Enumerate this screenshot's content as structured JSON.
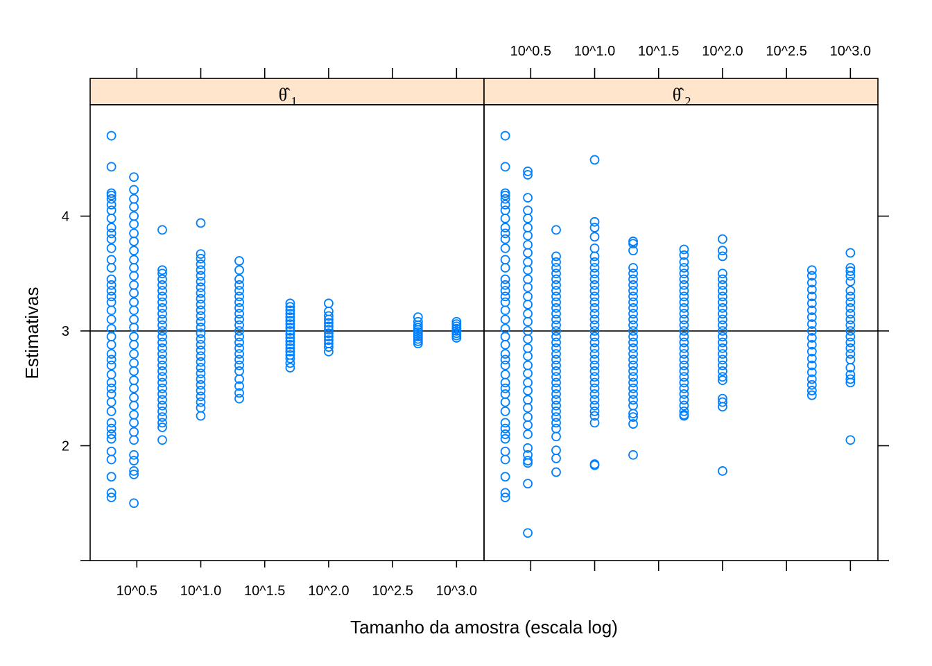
{
  "chart_data": {
    "type": "scatter",
    "xlabel": "Tamanho da amostra (escala log)",
    "ylabel": "Estimativas",
    "x_tick_labels": [
      "10^0.5",
      "10^1.0",
      "10^1.5",
      "10^2.0",
      "10^2.5",
      "10^3.0"
    ],
    "x_tick_exponents": [
      0.5,
      1.0,
      1.5,
      2.0,
      2.5,
      3.0
    ],
    "y_ticks": [
      2,
      3,
      4
    ],
    "ylim": [
      1.0,
      4.97
    ],
    "xlim_log10": [
      0.135,
      3.215
    ],
    "reference_line_y": 3,
    "point_color": "#0080ff",
    "strip_color": "#ffe5cc",
    "sample_sizes": [
      2,
      3,
      5,
      10,
      20,
      50,
      100,
      500,
      1000
    ],
    "panels": [
      {
        "name": "θ̂1",
        "strip_symbol": "θ̂",
        "strip_subscript": "1",
        "series": [
          {
            "n": 2,
            "values": [
              4.7,
              4.43,
              4.2,
              4.18,
              4.15,
              4.1,
              4.05,
              3.98,
              3.9,
              3.85,
              3.8,
              3.72,
              3.62,
              3.55,
              3.45,
              3.4,
              3.35,
              3.3,
              3.25,
              3.18,
              3.1,
              3.02,
              2.95,
              2.88,
              2.8,
              2.75,
              2.7,
              2.62,
              2.55,
              2.5,
              2.45,
              2.38,
              2.3,
              2.2,
              2.15,
              2.1,
              2.06,
              1.95,
              1.88,
              1.73,
              1.59,
              1.55
            ]
          },
          {
            "n": 3,
            "values": [
              4.34,
              4.23,
              4.15,
              4.08,
              4.0,
              3.93,
              3.85,
              3.78,
              3.7,
              3.62,
              3.55,
              3.48,
              3.4,
              3.33,
              3.25,
              3.18,
              3.1,
              3.03,
              2.95,
              2.88,
              2.8,
              2.72,
              2.65,
              2.57,
              2.5,
              2.42,
              2.35,
              2.27,
              2.2,
              2.12,
              2.05,
              1.92,
              1.87,
              1.78,
              1.75,
              1.5
            ]
          },
          {
            "n": 5,
            "values": [
              3.88,
              3.53,
              3.5,
              3.45,
              3.4,
              3.35,
              3.3,
              3.25,
              3.2,
              3.15,
              3.1,
              3.05,
              3.0,
              2.95,
              2.9,
              2.85,
              2.8,
              2.75,
              2.7,
              2.65,
              2.6,
              2.55,
              2.5,
              2.45,
              2.4,
              2.35,
              2.3,
              2.25,
              2.2,
              2.16,
              2.05
            ]
          },
          {
            "n": 10,
            "values": [
              3.94,
              3.67,
              3.63,
              3.58,
              3.53,
              3.48,
              3.43,
              3.38,
              3.33,
              3.28,
              3.23,
              3.18,
              3.13,
              3.08,
              3.03,
              2.98,
              2.93,
              2.88,
              2.83,
              2.78,
              2.73,
              2.68,
              2.63,
              2.58,
              2.53,
              2.48,
              2.43,
              2.38,
              2.33,
              2.26
            ]
          },
          {
            "n": 20,
            "values": [
              3.61,
              3.53,
              3.45,
              3.4,
              3.35,
              3.3,
              3.25,
              3.2,
              3.15,
              3.1,
              3.05,
              3.0,
              2.95,
              2.9,
              2.85,
              2.8,
              2.75,
              2.7,
              2.65,
              2.58,
              2.52,
              2.46,
              2.41
            ]
          },
          {
            "n": 50,
            "values": [
              3.24,
              3.21,
              3.18,
              3.15,
              3.12,
              3.09,
              3.06,
              3.03,
              3.0,
              2.97,
              2.94,
              2.91,
              2.88,
              2.85,
              2.82,
              2.79,
              2.76,
              2.72,
              2.68
            ]
          },
          {
            "n": 100,
            "values": [
              3.24,
              3.17,
              3.13,
              3.1,
              3.07,
              3.04,
              3.01,
              2.98,
              2.95,
              2.92,
              2.89,
              2.86,
              2.82
            ]
          },
          {
            "n": 500,
            "values": [
              3.12,
              3.08,
              3.05,
              3.03,
              3.01,
              2.99,
              2.97,
              2.95,
              2.93,
              2.91,
              2.89
            ]
          },
          {
            "n": 1000,
            "values": [
              3.08,
              3.06,
              3.04,
              3.02,
              3.0,
              2.98,
              2.96,
              2.94
            ]
          }
        ]
      },
      {
        "name": "θ̂2",
        "strip_symbol": "θ̂",
        "strip_subscript": "2",
        "series": [
          {
            "n": 2,
            "values": [
              4.7,
              4.43,
              4.2,
              4.18,
              4.15,
              4.1,
              4.05,
              3.98,
              3.9,
              3.85,
              3.8,
              3.72,
              3.62,
              3.55,
              3.45,
              3.4,
              3.35,
              3.3,
              3.25,
              3.18,
              3.1,
              3.02,
              2.95,
              2.88,
              2.8,
              2.75,
              2.7,
              2.62,
              2.55,
              2.5,
              2.45,
              2.38,
              2.3,
              2.2,
              2.15,
              2.1,
              2.06,
              1.95,
              1.88,
              1.73,
              1.59,
              1.55
            ]
          },
          {
            "n": 3,
            "values": [
              4.39,
              4.36,
              4.16,
              4.05,
              3.98,
              3.9,
              3.83,
              3.75,
              3.68,
              3.6,
              3.53,
              3.45,
              3.38,
              3.3,
              3.23,
              3.15,
              3.08,
              3.0,
              2.93,
              2.85,
              2.78,
              2.7,
              2.63,
              2.55,
              2.48,
              2.4,
              2.33,
              2.25,
              2.18,
              2.1,
              1.98,
              1.92,
              1.87,
              1.85,
              1.67,
              1.24
            ]
          },
          {
            "n": 5,
            "values": [
              3.88,
              3.65,
              3.6,
              3.55,
              3.5,
              3.45,
              3.4,
              3.35,
              3.3,
              3.25,
              3.2,
              3.15,
              3.1,
              3.05,
              3.0,
              2.95,
              2.9,
              2.85,
              2.8,
              2.75,
              2.7,
              2.65,
              2.6,
              2.55,
              2.5,
              2.45,
              2.4,
              2.35,
              2.3,
              2.25,
              2.2,
              2.15,
              2.08,
              1.96,
              1.89,
              1.77
            ]
          },
          {
            "n": 10,
            "values": [
              4.49,
              3.95,
              3.9,
              3.82,
              3.72,
              3.65,
              3.6,
              3.55,
              3.5,
              3.45,
              3.4,
              3.35,
              3.3,
              3.25,
              3.2,
              3.15,
              3.1,
              3.05,
              3.0,
              2.95,
              2.9,
              2.85,
              2.8,
              2.75,
              2.7,
              2.65,
              2.6,
              2.55,
              2.5,
              2.45,
              2.4,
              2.35,
              2.3,
              2.26,
              2.2,
              1.84,
              1.83
            ]
          },
          {
            "n": 20,
            "values": [
              3.78,
              3.76,
              3.7,
              3.55,
              3.5,
              3.45,
              3.4,
              3.35,
              3.3,
              3.25,
              3.2,
              3.15,
              3.1,
              3.05,
              3.0,
              2.95,
              2.9,
              2.85,
              2.8,
              2.75,
              2.7,
              2.65,
              2.6,
              2.55,
              2.5,
              2.45,
              2.4,
              2.35,
              2.28,
              2.25,
              2.19,
              1.92
            ]
          },
          {
            "n": 50,
            "values": [
              3.71,
              3.66,
              3.6,
              3.55,
              3.5,
              3.45,
              3.4,
              3.35,
              3.3,
              3.25,
              3.2,
              3.15,
              3.1,
              3.05,
              3.0,
              2.95,
              2.9,
              2.85,
              2.8,
              2.75,
              2.7,
              2.65,
              2.6,
              2.55,
              2.5,
              2.45,
              2.4,
              2.35,
              2.3,
              2.27,
              2.26
            ]
          },
          {
            "n": 100,
            "values": [
              3.8,
              3.7,
              3.65,
              3.5,
              3.45,
              3.4,
              3.35,
              3.3,
              3.25,
              3.2,
              3.15,
              3.1,
              3.05,
              3.0,
              2.95,
              2.9,
              2.85,
              2.8,
              2.75,
              2.7,
              2.65,
              2.6,
              2.57,
              2.41,
              2.38,
              2.34,
              1.78
            ]
          },
          {
            "n": 500,
            "values": [
              3.53,
              3.48,
              3.42,
              3.36,
              3.3,
              3.24,
              3.18,
              3.12,
              3.06,
              3.0,
              2.94,
              2.88,
              2.82,
              2.76,
              2.7,
              2.64,
              2.58,
              2.53,
              2.48,
              2.44
            ]
          },
          {
            "n": 1000,
            "values": [
              3.68,
              3.55,
              3.52,
              3.48,
              3.43,
              3.35,
              3.3,
              3.25,
              3.2,
              3.15,
              3.1,
              3.05,
              3.0,
              2.95,
              2.9,
              2.85,
              2.8,
              2.75,
              2.68,
              2.62,
              2.58,
              2.55,
              2.05
            ]
          }
        ]
      }
    ]
  }
}
